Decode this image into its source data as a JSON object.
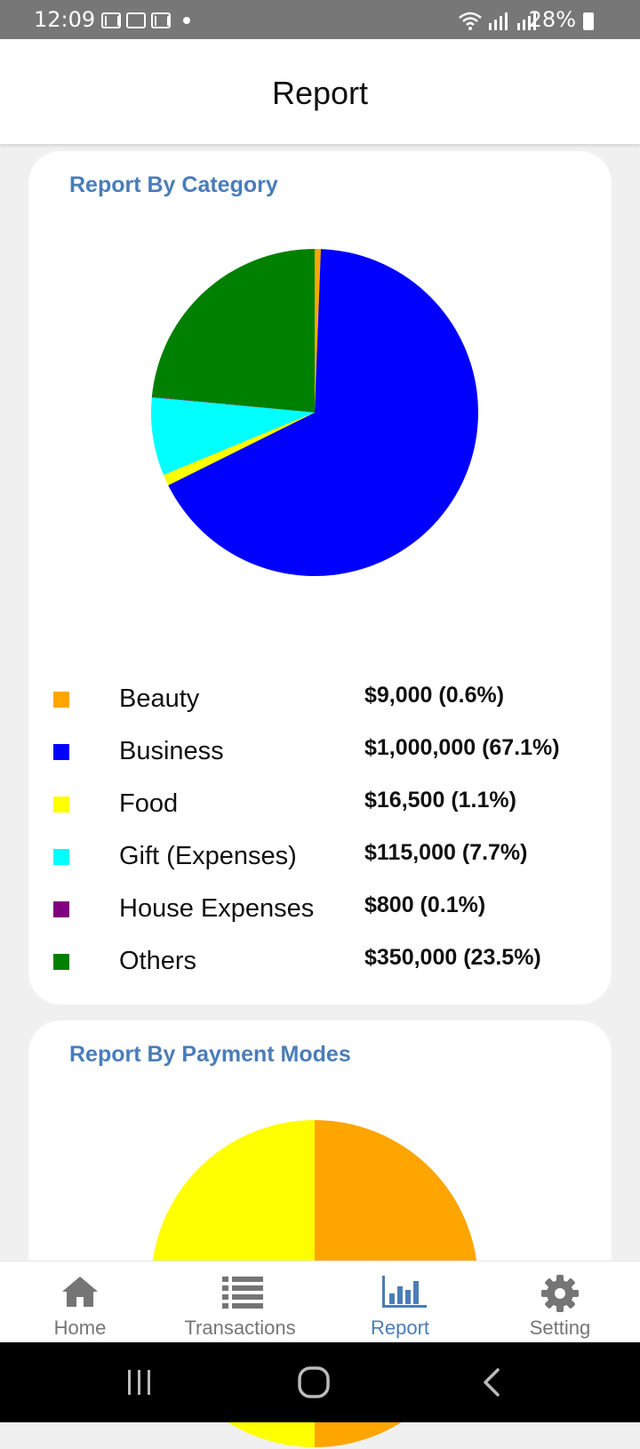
{
  "status_bar": {
    "time": "12:09",
    "battery": "28%"
  },
  "header": {
    "title": "Report"
  },
  "category_report": {
    "title": "Report By Category",
    "chart_data": {
      "type": "pie",
      "title": "Report By Category",
      "start_angle_deg": 0,
      "categories": [
        "Beauty",
        "Business",
        "Food",
        "Gift (Expenses)",
        "House Expenses",
        "Others"
      ],
      "values": [
        9000,
        1000000,
        16500,
        115000,
        800,
        350000
      ],
      "colors": [
        "#FFA500",
        "#0000FF",
        "#FFFF00",
        "#00FFFF",
        "#800080",
        "#008000"
      ]
    },
    "legend": [
      {
        "label": "Beauty",
        "value": "$9,000 (0.6%)",
        "color": "#FFA500"
      },
      {
        "label": "Business",
        "value": "$1,000,000 (67.1%)",
        "color": "#0000FF"
      },
      {
        "label": "Food",
        "value": "$16,500 (1.1%)",
        "color": "#FFFF00"
      },
      {
        "label": "Gift (Expenses)",
        "value": "$115,000 (7.7%)",
        "color": "#00FFFF"
      },
      {
        "label": "House Expenses",
        "value": "$800 (0.1%)",
        "color": "#800080"
      },
      {
        "label": "Others",
        "value": "$350,000 (23.5%)",
        "color": "#008000"
      }
    ]
  },
  "payment_report": {
    "title": "Report By Payment Modes",
    "chart_data": {
      "type": "pie",
      "title": "Report By Payment Modes",
      "start_angle_deg": 0,
      "values": [
        50,
        50
      ],
      "colors": [
        "#FFA500",
        "#FFFF00"
      ]
    }
  },
  "bottom_nav": {
    "items": [
      {
        "label": "Home",
        "icon": "home-icon"
      },
      {
        "label": "Transactions",
        "icon": "list-icon"
      },
      {
        "label": "Report",
        "icon": "bar-chart-icon"
      },
      {
        "label": "Setting",
        "icon": "gear-icon"
      }
    ],
    "active_index": 2,
    "active_color": "#4a7db8",
    "inactive_color": "#757575"
  }
}
